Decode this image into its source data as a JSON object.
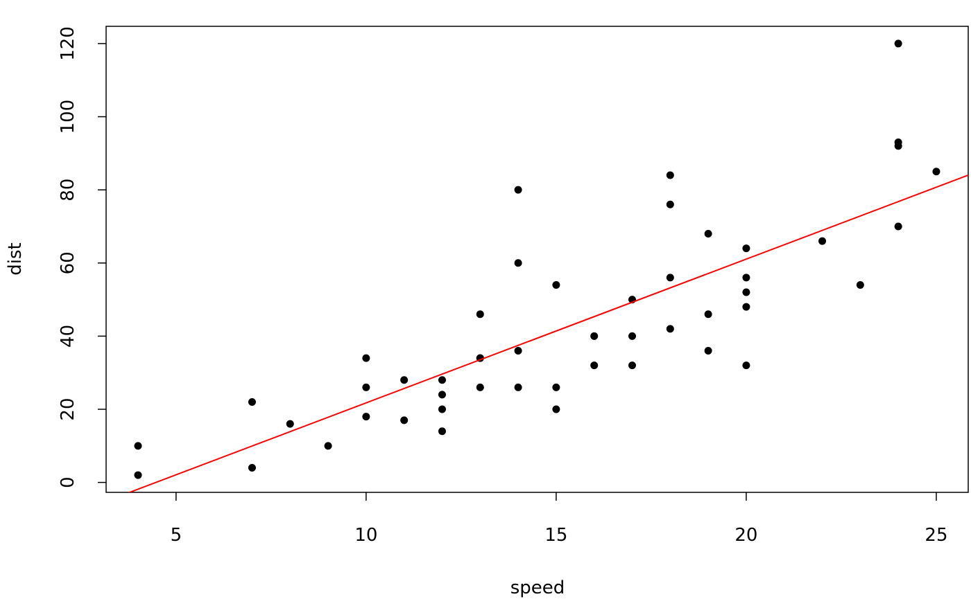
{
  "chart_data": {
    "type": "scatter",
    "x_label": "speed",
    "y_label": "dist",
    "x": [
      4,
      4,
      7,
      7,
      8,
      9,
      10,
      10,
      10,
      11,
      11,
      12,
      12,
      12,
      12,
      13,
      13,
      13,
      13,
      14,
      14,
      14,
      14,
      15,
      15,
      15,
      16,
      16,
      17,
      17,
      17,
      18,
      18,
      18,
      18,
      19,
      19,
      19,
      20,
      20,
      20,
      20,
      20,
      22,
      23,
      24,
      24,
      24,
      24,
      25
    ],
    "values": [
      2,
      10,
      4,
      22,
      16,
      10,
      18,
      26,
      34,
      17,
      28,
      14,
      20,
      24,
      28,
      26,
      34,
      34,
      46,
      26,
      36,
      60,
      80,
      20,
      26,
      54,
      32,
      40,
      32,
      40,
      50,
      42,
      56,
      76,
      84,
      36,
      46,
      68,
      32,
      48,
      52,
      56,
      64,
      66,
      54,
      70,
      92,
      93,
      120,
      85
    ],
    "color": "#000000",
    "regression_line": {
      "intercept": -17.579,
      "slope": 3.932,
      "color": "#ff0000"
    },
    "xlim": [
      3.16,
      25.84
    ],
    "ylim": [
      -2.72,
      124.72
    ],
    "xticks": [
      5,
      10,
      15,
      20,
      25
    ],
    "yticks": [
      0,
      20,
      40,
      60,
      80,
      100,
      120
    ]
  }
}
